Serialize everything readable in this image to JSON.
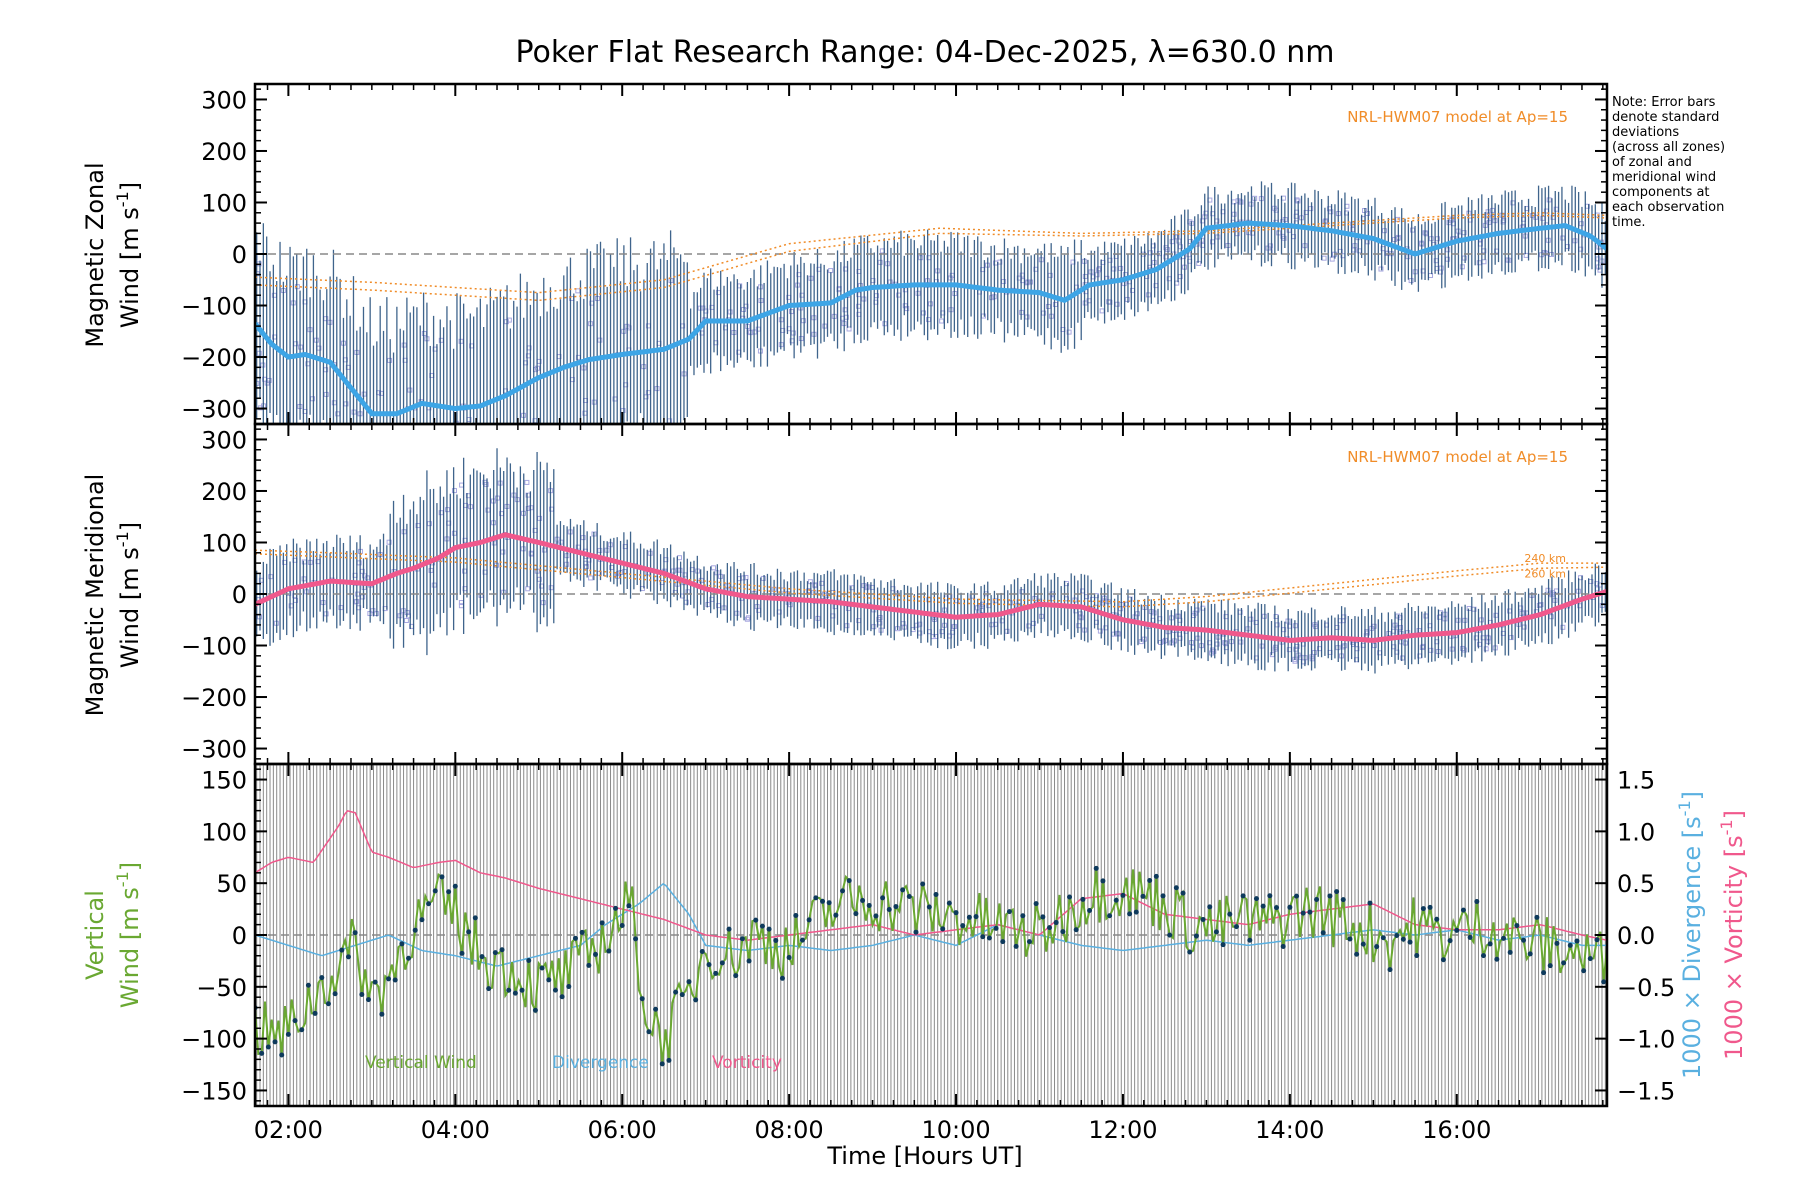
{
  "title": "Poker Flat Research Range: 04-Dec-2025, λ=630.0 nm",
  "note_lines": [
    "Note: Error bars",
    "denote standard",
    "deviations",
    "(across all zones)",
    "of zonal and",
    "meridional wind",
    "components at",
    "each observation",
    "time."
  ],
  "xaxis": {
    "label": "Time [Hours UT]",
    "range": [
      1.6,
      17.8
    ],
    "ticks": [
      2,
      4,
      6,
      8,
      10,
      12,
      14,
      16
    ],
    "tick_labels": [
      "02:00",
      "04:00",
      "06:00",
      "08:00",
      "10:00",
      "12:00",
      "14:00",
      "16:00"
    ]
  },
  "colors": {
    "zonal": "#3da5e6",
    "meridional": "#f0588c",
    "vertical": "#6aa832",
    "divergence": "#5ab0e0",
    "vorticity": "#f0588c",
    "model": "#f08c28",
    "errorbar": "#1e4a78",
    "scatter": "#a8a8e0",
    "dots": "#0e3a5c",
    "zero": "#888888"
  },
  "chart_data": [
    {
      "type": "line",
      "panel": "zonal",
      "ylabel_line1": "Magnetic Zonal",
      "ylabel_line2": "Wind [m s",
      "ylabel_sup": "-1",
      "ylabel_close": "]",
      "ylim": [
        -330,
        330
      ],
      "yticks": [
        -300,
        -200,
        -100,
        0,
        100,
        200,
        300
      ],
      "model_label": "NRL-HWM07 model at Ap=15",
      "series": [
        {
          "name": "Zonal wind",
          "x": [
            1.6,
            1.8,
            2.0,
            2.2,
            2.5,
            2.8,
            3.0,
            3.3,
            3.6,
            4.0,
            4.3,
            4.6,
            5.0,
            5.3,
            5.6,
            6.0,
            6.5,
            6.8,
            7.0,
            7.5,
            8.0,
            8.5,
            8.8,
            9.0,
            9.5,
            10.0,
            10.5,
            11.0,
            11.3,
            11.6,
            12.0,
            12.4,
            12.8,
            13.0,
            13.5,
            14.0,
            14.5,
            15.0,
            15.5,
            16.0,
            16.5,
            17.0,
            17.3,
            17.6,
            17.8
          ],
          "values": [
            -135,
            -175,
            -200,
            -195,
            -210,
            -270,
            -310,
            -310,
            -290,
            -300,
            -295,
            -275,
            -240,
            -220,
            -205,
            -195,
            -185,
            -165,
            -130,
            -130,
            -100,
            -95,
            -70,
            -65,
            -60,
            -60,
            -70,
            -75,
            -90,
            -60,
            -50,
            -30,
            10,
            50,
            60,
            55,
            45,
            30,
            0,
            25,
            40,
            50,
            55,
            35,
            10
          ]
        },
        {
          "name": "HWM 240 km",
          "x": [
            1.6,
            3.0,
            5.0,
            6.5,
            8.0,
            9.8,
            11.5,
            13.0,
            14.5,
            16.0,
            17.0,
            17.8
          ],
          "values": [
            -45,
            -55,
            -75,
            -50,
            20,
            50,
            40,
            45,
            60,
            75,
            80,
            75
          ]
        },
        {
          "name": "HWM 260 km",
          "x": [
            1.6,
            3.0,
            5.0,
            6.5,
            8.0,
            9.8,
            11.5,
            13.0,
            14.5,
            16.0,
            17.0,
            17.8
          ],
          "values": [
            -60,
            -70,
            -90,
            -65,
            5,
            40,
            35,
            40,
            55,
            70,
            75,
            70
          ]
        }
      ]
    },
    {
      "type": "line",
      "panel": "meridional",
      "ylabel_line1": "Magnetic Meridional",
      "ylabel_line2": "Wind [m s",
      "ylabel_sup": "-1",
      "ylabel_close": "]",
      "ylim": [
        -330,
        330
      ],
      "yticks": [
        -300,
        -200,
        -100,
        0,
        100,
        200,
        300
      ],
      "model_label": "NRL-HWM07 model at Ap=15",
      "model_labels": [
        "240 km",
        "260 km"
      ],
      "series": [
        {
          "name": "Meridional wind",
          "x": [
            1.6,
            2.0,
            2.5,
            3.0,
            3.3,
            3.5,
            3.8,
            4.0,
            4.3,
            4.6,
            5.0,
            5.5,
            6.0,
            6.5,
            7.0,
            7.5,
            8.0,
            8.5,
            9.0,
            9.5,
            10.0,
            10.5,
            11.0,
            11.5,
            12.0,
            12.5,
            13.0,
            13.5,
            14.0,
            14.5,
            15.0,
            15.5,
            16.0,
            16.5,
            17.0,
            17.5,
            17.8
          ],
          "values": [
            -20,
            10,
            25,
            20,
            40,
            50,
            70,
            90,
            100,
            115,
            100,
            80,
            60,
            40,
            10,
            -5,
            -10,
            -15,
            -25,
            -35,
            -45,
            -40,
            -20,
            -25,
            -50,
            -65,
            -70,
            -80,
            -90,
            -85,
            -90,
            -80,
            -75,
            -60,
            -40,
            -10,
            5
          ]
        },
        {
          "name": "HWM 240 km",
          "x": [
            1.6,
            2.5,
            4.0,
            6.0,
            8.0,
            10.0,
            12.0,
            13.0,
            14.5,
            16.0,
            17.0,
            17.8
          ],
          "values": [
            85,
            80,
            70,
            40,
            10,
            -10,
            -15,
            -5,
            20,
            45,
            60,
            60
          ]
        },
        {
          "name": "HWM 260 km",
          "x": [
            1.6,
            2.5,
            4.0,
            6.0,
            8.0,
            10.0,
            12.0,
            13.0,
            14.5,
            16.0,
            17.0,
            17.8
          ],
          "values": [
            78,
            72,
            62,
            32,
            2,
            -18,
            -25,
            -15,
            10,
            35,
            50,
            52
          ]
        }
      ]
    },
    {
      "type": "line",
      "panel": "vertical",
      "ylabel_line1": "Vertical",
      "ylabel_line2": "Wind [m s",
      "ylabel_sup": "-1",
      "ylabel_close": "]",
      "ylim": [
        -165,
        165
      ],
      "yticks": [
        -150,
        -100,
        -50,
        0,
        50,
        100,
        150
      ],
      "y2lim": [
        -1.65,
        1.65
      ],
      "y2ticks": [
        -1.5,
        -1.0,
        -0.5,
        0.0,
        0.5,
        1.0,
        1.5
      ],
      "y2tick_labels": [
        "−1.5",
        "−1.0",
        "−0.5",
        "0.0",
        "0.5",
        "1.0",
        "1.5"
      ],
      "y2label_div": "1000 × Divergence [s",
      "y2label_vort": "1000 × Vorticity [s",
      "y2label_sup": "-1",
      "y2label_close": "]",
      "legend": [
        "Vertical Wind",
        "Divergence",
        "Vorticity"
      ],
      "series": [
        {
          "name": "Vertical Wind",
          "x": [
            1.6,
            1.9,
            2.2,
            2.5,
            2.8,
            3.0,
            3.2,
            3.5,
            3.8,
            4.0,
            4.3,
            4.6,
            5.0,
            5.3,
            5.6,
            5.9,
            6.1,
            6.3,
            6.5,
            6.8,
            7.0,
            7.3,
            7.6,
            8.0,
            8.3,
            8.6,
            8.9,
            9.2,
            9.5,
            9.8,
            10.1,
            10.4,
            10.7,
            11.0,
            11.3,
            11.6,
            11.9,
            12.2,
            12.5,
            12.8,
            13.1,
            13.4,
            13.7,
            14.0,
            14.3,
            14.6,
            14.9,
            15.2,
            15.5,
            15.8,
            16.1,
            16.4,
            16.7,
            17.0,
            17.3,
            17.6,
            17.8
          ],
          "values": [
            -90,
            -100,
            -70,
            -40,
            -10,
            -60,
            -40,
            10,
            30,
            20,
            -20,
            -30,
            -50,
            -40,
            -20,
            10,
            30,
            -80,
            -100,
            -60,
            -10,
            -20,
            0,
            -15,
            10,
            30,
            35,
            30,
            25,
            20,
            15,
            10,
            5,
            0,
            20,
            40,
            45,
            40,
            30,
            10,
            5,
            15,
            10,
            20,
            25,
            15,
            5,
            -5,
            10,
            0,
            5,
            10,
            -5,
            -10,
            -15,
            -20,
            -25
          ]
        },
        {
          "name": "Divergence",
          "x": [
            1.6,
            2.0,
            2.4,
            2.8,
            3.2,
            3.6,
            4.0,
            4.5,
            5.0,
            5.5,
            5.8,
            6.2,
            6.5,
            6.8,
            7.0,
            7.5,
            8.0,
            8.5,
            9.0,
            9.5,
            10.0,
            10.5,
            11.0,
            11.5,
            12.0,
            12.5,
            13.0,
            13.5,
            14.0,
            14.5,
            15.0,
            15.5,
            16.0,
            16.5,
            17.0,
            17.5,
            17.8
          ],
          "values": [
            0.0,
            -0.1,
            -0.2,
            -0.1,
            0.0,
            -0.15,
            -0.2,
            -0.3,
            -0.2,
            -0.1,
            0.1,
            0.3,
            0.5,
            0.2,
            -0.1,
            -0.15,
            -0.1,
            -0.15,
            -0.1,
            0.0,
            -0.1,
            0.1,
            0.0,
            -0.1,
            -0.15,
            -0.1,
            -0.05,
            -0.1,
            -0.05,
            0.0,
            0.05,
            0.0,
            0.05,
            -0.05,
            0.0,
            -0.1,
            -0.1
          ]
        },
        {
          "name": "Vorticity",
          "x": [
            1.6,
            1.8,
            2.0,
            2.3,
            2.6,
            2.7,
            2.8,
            3.0,
            3.2,
            3.5,
            3.8,
            4.0,
            4.3,
            4.6,
            5.0,
            5.5,
            6.0,
            6.5,
            7.0,
            7.5,
            8.0,
            8.5,
            9.0,
            9.5,
            10.0,
            10.5,
            11.0,
            11.5,
            12.0,
            12.5,
            13.0,
            13.5,
            14.0,
            14.5,
            15.0,
            15.5,
            16.0,
            16.5,
            17.0,
            17.5,
            17.8
          ],
          "values": [
            0.6,
            0.7,
            0.75,
            0.7,
            1.05,
            1.2,
            1.18,
            0.8,
            0.75,
            0.65,
            0.7,
            0.72,
            0.6,
            0.55,
            0.45,
            0.35,
            0.25,
            0.15,
            0.0,
            -0.05,
            0.0,
            0.05,
            0.1,
            0.0,
            0.05,
            0.1,
            0.0,
            0.35,
            0.4,
            0.2,
            0.15,
            0.1,
            0.2,
            0.25,
            0.3,
            0.1,
            0.05,
            0.05,
            0.1,
            0.0,
            -0.05
          ]
        }
      ]
    }
  ]
}
